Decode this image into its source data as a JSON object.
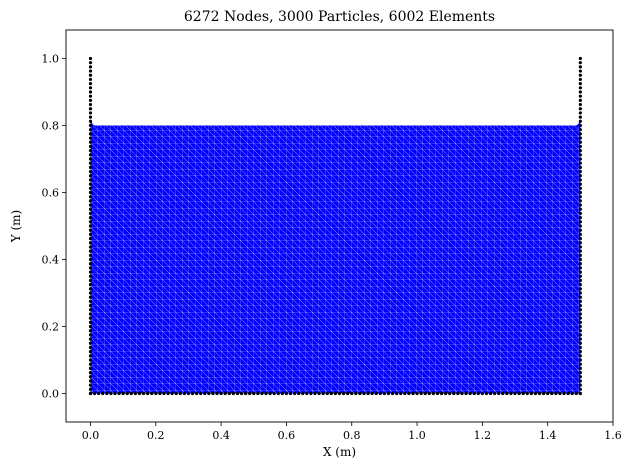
{
  "chart_data": {
    "type": "scatter",
    "title": "6272 Nodes, 3000 Particles, 6002 Elements",
    "xlabel": "X (m)",
    "ylabel": "Y (m)",
    "xlim": [
      -0.075,
      1.6
    ],
    "ylim": [
      -0.085,
      1.085
    ],
    "xticks": [
      0.0,
      0.2,
      0.4,
      0.6,
      0.8,
      1.0,
      1.2,
      1.4,
      1.6
    ],
    "xtick_labels": [
      "0.0",
      "0.2",
      "0.4",
      "0.6",
      "0.8",
      "1.0",
      "1.2",
      "1.4",
      "1.6"
    ],
    "yticks": [
      0.0,
      0.2,
      0.4,
      0.6,
      0.8,
      1.0
    ],
    "ytick_labels": [
      "0.0",
      "0.2",
      "0.4",
      "0.6",
      "0.8",
      "1.0"
    ],
    "grid": false,
    "series": [
      {
        "kind": "fluid-mesh",
        "color": "#0000ff",
        "edge_color": "#ffffff",
        "region": {
          "x": [
            0.0,
            1.5
          ],
          "y": [
            0.0,
            0.8
          ]
        },
        "mesh_spacing": 0.02
      },
      {
        "kind": "boundary-nodes",
        "color": "#000000",
        "left_wall": {
          "x": 0.0,
          "y": [
            0.0,
            1.0
          ]
        },
        "right_wall": {
          "x": 1.5,
          "y": [
            0.0,
            1.0
          ]
        },
        "bottom_wall": {
          "y": 0.0,
          "x": [
            0.0,
            1.5
          ]
        },
        "node_spacing": 0.0125
      }
    ]
  }
}
